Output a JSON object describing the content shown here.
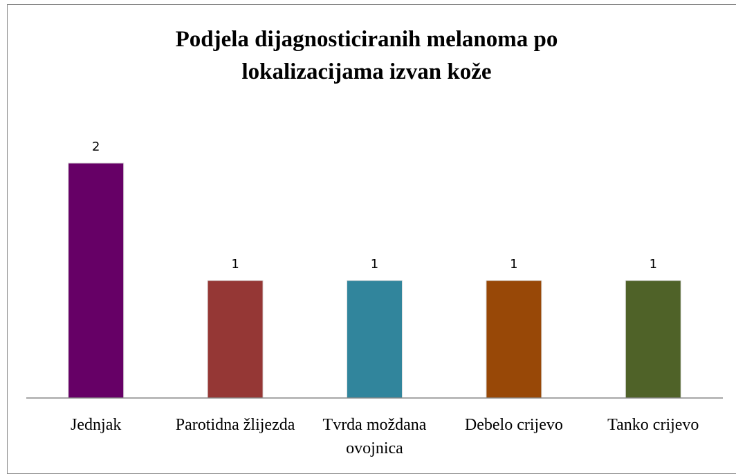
{
  "chart_data": {
    "type": "bar",
    "title": "Podjela dijagnosticiranih melanoma po lokalizacijama izvan kože",
    "categories": [
      "Jednjak",
      "Parotidna žlijezda",
      "Tvrda moždana ovojnica",
      "Debelo crijevo",
      "Tanko crijevo"
    ],
    "values": [
      2,
      1,
      1,
      1,
      1
    ],
    "colors": [
      "#660066",
      "#953735",
      "#31859c",
      "#984807",
      "#4f6228"
    ],
    "ylim": [
      0,
      2.4
    ]
  }
}
